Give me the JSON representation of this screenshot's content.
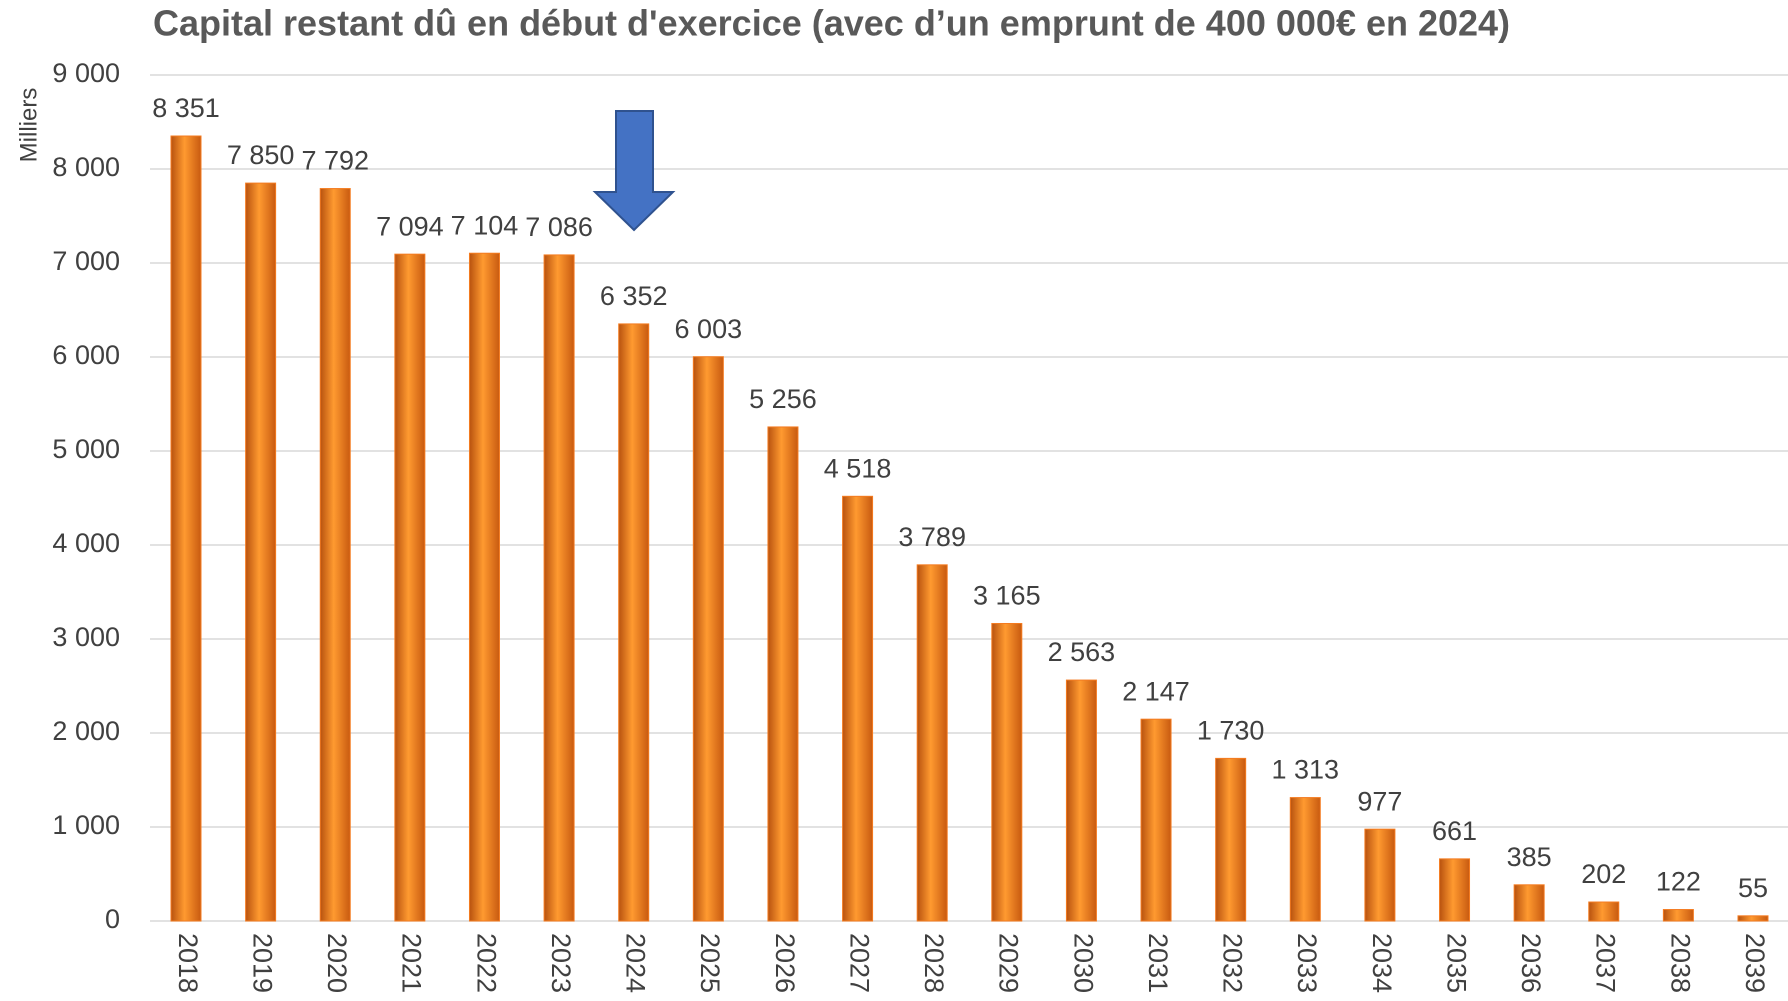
{
  "chart_data": {
    "type": "bar",
    "title": "Capital restant dû en début d'exercice (avec d’un emprunt de 400 000€ en 2024)",
    "y_label": "Milliers",
    "categories": [
      "2018",
      "2019",
      "2020",
      "2021",
      "2022",
      "2023",
      "2024",
      "2025",
      "2026",
      "2027",
      "2028",
      "2029",
      "2030",
      "2031",
      "2032",
      "2033",
      "2034",
      "2035",
      "2036",
      "2037",
      "2038",
      "2039"
    ],
    "values": [
      8351,
      7850,
      7792,
      7094,
      7104,
      7086,
      6352,
      6003,
      5256,
      4518,
      3789,
      3165,
      2563,
      2147,
      1730,
      1313,
      977,
      661,
      385,
      202,
      122,
      55
    ],
    "value_labels": [
      "8 351",
      "7 850",
      "7 792",
      "7 094",
      "7 104",
      "7 086",
      "6 352",
      "6 003",
      "5 256",
      "4 518",
      "3 789",
      "3 165",
      "2 563",
      "2 147",
      "1 730",
      "1 313",
      "977",
      "661",
      "385",
      "202",
      "122",
      "55"
    ],
    "color": "#f47b20",
    "ylim": [
      0,
      9000
    ],
    "yticks": [
      {
        "value": 0,
        "label": "0"
      },
      {
        "value": 1000,
        "label": "1 000"
      },
      {
        "value": 2000,
        "label": "2 000"
      },
      {
        "value": 3000,
        "label": "3 000"
      },
      {
        "value": 4000,
        "label": "4 000"
      },
      {
        "value": 5000,
        "label": "5 000"
      },
      {
        "value": 6000,
        "label": "6 000"
      },
      {
        "value": 7000,
        "label": "7 000"
      },
      {
        "value": 8000,
        "label": "8 000"
      },
      {
        "value": 9000,
        "label": "9 000"
      }
    ],
    "grid": true
  }
}
